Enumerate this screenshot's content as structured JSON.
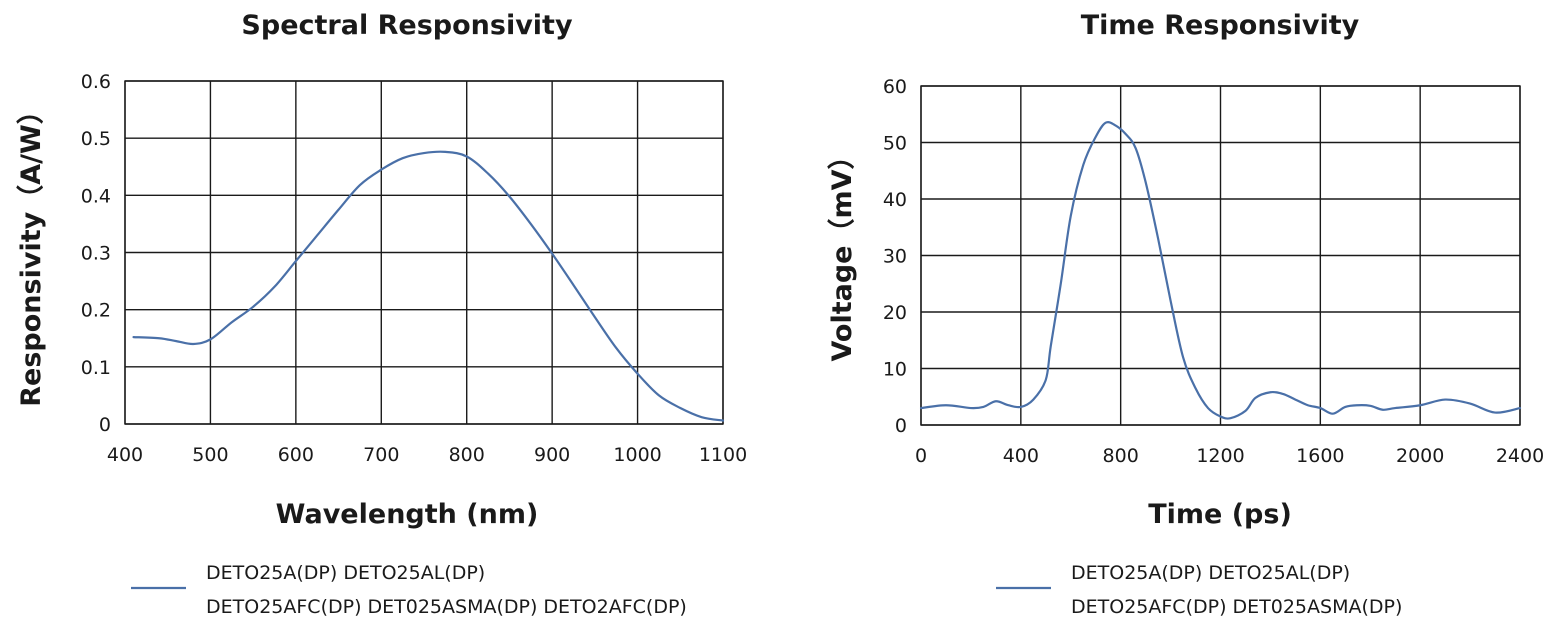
{
  "chart_data": [
    {
      "type": "line",
      "title": "Spectral Responsivity",
      "xlabel": "Wavelength (nm)",
      "ylabel": "Responsivity（A/W）",
      "xlim": [
        400,
        1100
      ],
      "ylim": [
        0,
        0.6
      ],
      "grid": true,
      "legend_position": "bottom-left",
      "x_ticks": [
        "400",
        "500",
        "600",
        "700",
        "800",
        "900",
        "1000",
        "1100"
      ],
      "y_ticks": [
        "0",
        "0.1",
        "0.2",
        "0.3",
        "0.4",
        "0.5",
        "0.6"
      ],
      "series": [
        {
          "name": "DETO25A(DP)  DETO25AL(DP) DETO25AFC(DP) DET025ASMA(DP) DETO2AFC(DP)",
          "color": "#4a70a8",
          "x": [
            410,
            440,
            460,
            480,
            500,
            525,
            550,
            575,
            600,
            625,
            650,
            675,
            700,
            725,
            750,
            775,
            800,
            825,
            850,
            875,
            900,
            925,
            950,
            975,
            1000,
            1025,
            1050,
            1075,
            1100
          ],
          "y": [
            0.152,
            0.15,
            0.145,
            0.14,
            0.148,
            0.178,
            0.205,
            0.24,
            0.285,
            0.33,
            0.375,
            0.418,
            0.445,
            0.465,
            0.474,
            0.476,
            0.468,
            0.438,
            0.398,
            0.35,
            0.298,
            0.243,
            0.187,
            0.133,
            0.088,
            0.05,
            0.028,
            0.012,
            0.006
          ]
        }
      ],
      "legend_lines": [
        "DETO25A(DP)  DETO25AL(DP)",
        "DETO25AFC(DP) DET025ASMA(DP) DETO2AFC(DP)"
      ]
    },
    {
      "type": "line",
      "title": "Time  Responsivity",
      "xlabel": "Time (ps)",
      "ylabel": "Voltage（mV）",
      "xlim": [
        0,
        2400
      ],
      "ylim": [
        0,
        60
      ],
      "grid": true,
      "legend_position": "bottom-left",
      "x_ticks": [
        "0",
        "400",
        "800",
        "1200",
        "1600",
        "2000",
        "2400"
      ],
      "y_ticks": [
        "0",
        "10",
        "20",
        "30",
        "40",
        "50",
        "60"
      ],
      "series": [
        {
          "name": "DETO25A(DP)  DETO25AL(DP) DETO25AFC(DP) DET025ASMA(DP)",
          "color": "#4a70a8",
          "x": [
            0,
            100,
            200,
            250,
            300,
            350,
            400,
            450,
            500,
            520,
            560,
            600,
            650,
            700,
            740,
            780,
            820,
            860,
            900,
            950,
            1000,
            1050,
            1100,
            1150,
            1200,
            1240,
            1300,
            1340,
            1400,
            1450,
            1500,
            1550,
            1600,
            1650,
            1700,
            1750,
            1800,
            1850,
            1900,
            2000,
            2100,
            2200,
            2300,
            2400
          ],
          "y": [
            3,
            3.5,
            3,
            3.2,
            4.2,
            3.5,
            3.2,
            4.5,
            8,
            14,
            25,
            37,
            46,
            51,
            53.5,
            53,
            51.5,
            49,
            43,
            33,
            22,
            12,
            6.5,
            3,
            1.5,
            1.2,
            2.5,
            4.8,
            5.8,
            5.5,
            4.5,
            3.5,
            3.0,
            2.0,
            3.2,
            3.5,
            3.4,
            2.7,
            3.0,
            3.5,
            4.5,
            3.8,
            2.2,
            3.0
          ]
        }
      ],
      "legend_lines": [
        "DETO25A(DP)  DETO25AL(DP)",
        "DETO25AFC(DP) DET025ASMA(DP)"
      ]
    }
  ]
}
